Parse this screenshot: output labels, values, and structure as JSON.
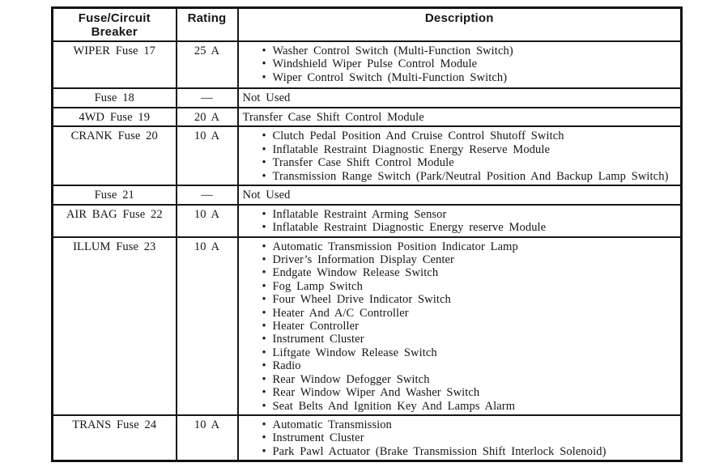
{
  "table": {
    "headers": {
      "fuse": "Fuse/Circuit Breaker",
      "rating": "Rating",
      "description": "Description"
    },
    "rows": [
      {
        "fuse": "WIPER Fuse 17",
        "rating": "25 A",
        "bulleted": true,
        "items": [
          "Washer Control Switch (Multi-Function Switch)",
          "Windshield Wiper Pulse Control Module",
          "Wiper Control Switch (Multi-Function Switch)"
        ]
      },
      {
        "fuse": "Fuse 18",
        "rating": "—",
        "bulleted": false,
        "items": [
          "Not Used"
        ]
      },
      {
        "fuse": "4WD Fuse 19",
        "rating": "20 A",
        "bulleted": false,
        "items": [
          "Transfer Case Shift Control Module"
        ]
      },
      {
        "fuse": "CRANK Fuse 20",
        "rating": "10 A",
        "bulleted": true,
        "items": [
          "Clutch Pedal Position And Cruise Control Shutoff Switch",
          "Inflatable Restraint Diagnostic Energy Reserve Module",
          "Transfer Case Shift Control Module",
          "Transmission Range Switch (Park/Neutral Position And Backup Lamp Switch)"
        ]
      },
      {
        "fuse": "Fuse 21",
        "rating": "—",
        "bulleted": false,
        "items": [
          "Not Used"
        ]
      },
      {
        "fuse": "AIR BAG Fuse 22",
        "rating": "10 A",
        "bulleted": true,
        "items": [
          "Inflatable Restraint Arming Sensor",
          "Inflatable Restraint Diagnostic Energy reserve Module"
        ]
      },
      {
        "fuse": "ILLUM Fuse 23",
        "rating": "10 A",
        "bulleted": true,
        "items": [
          "Automatic Transmission Position Indicator Lamp",
          "Driver’s Information Display Center",
          "Endgate Window Release Switch",
          "Fog Lamp Switch",
          "Four Wheel Drive Indicator Switch",
          "Heater And A/C Controller",
          "Heater Controller",
          "Instrument Cluster",
          "Liftgate Window Release Switch",
          "Radio",
          "Rear Window Defogger Switch",
          "Rear Window Wiper And Washer Switch",
          "Seat Belts And Ignition Key And Lamps Alarm"
        ]
      },
      {
        "fuse": "TRANS Fuse 24",
        "rating": "10 A",
        "bulleted": true,
        "items": [
          "Automatic Transmission",
          "Instrument Cluster",
          "Park Pawl Actuator (Brake Transmission Shift Interlock Solenoid)"
        ]
      }
    ]
  }
}
